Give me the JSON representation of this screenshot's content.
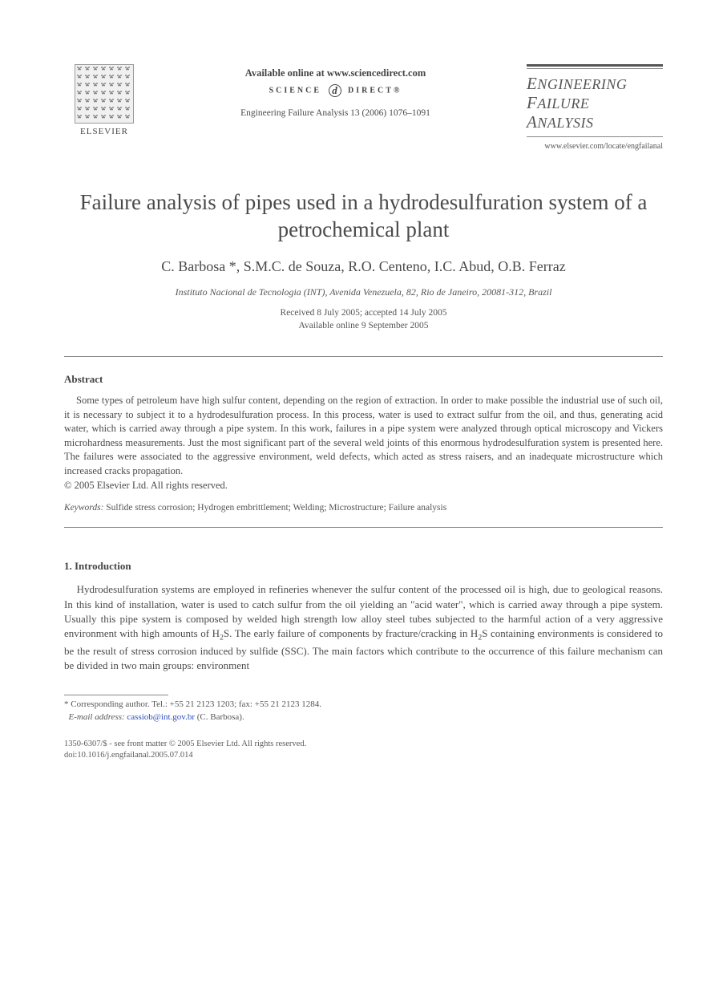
{
  "colors": {
    "text": "#4a4a4a",
    "muted": "#555555",
    "rule": "#888888",
    "link": "#2a4fbf",
    "background": "#ffffff"
  },
  "typography": {
    "base_family": "Georgia, 'Times New Roman', serif",
    "title_pt": 27,
    "authors_pt": 18,
    "body_pt": 13,
    "abstract_pt": 12.5,
    "small_pt": 11
  },
  "header": {
    "publisher": "ELSEVIER",
    "available_line": "Available online at www.sciencedirect.com",
    "sciencedirect_left": "SCIENCE",
    "sciencedirect_right": "DIRECT®",
    "sd_symbol": "d",
    "citation": "Engineering Failure Analysis 13 (2006) 1076–1091",
    "journal_line1_cap": "E",
    "journal_line1_rest": "NGINEERING",
    "journal_line2_cap": "F",
    "journal_line2_rest": "AILURE",
    "journal_line3_cap": "A",
    "journal_line3_rest": "NALYSIS",
    "journal_url": "www.elsevier.com/locate/engfailanal"
  },
  "title": "Failure analysis of pipes used in a hydrodesulfuration system of a petrochemical plant",
  "authors": "C. Barbosa *, S.M.C. de Souza, R.O. Centeno, I.C. Abud, O.B. Ferraz",
  "affiliation": "Instituto Nacional de Tecnologia (INT), Avenida Venezuela, 82, Rio de Janeiro, 20081-312, Brazil",
  "dates_line1": "Received 8 July 2005; accepted 14 July 2005",
  "dates_line2": "Available online 9 September 2005",
  "abstract_heading": "Abstract",
  "abstract_body": "Some types of petroleum have high sulfur content, depending on the region of extraction. In order to make possible the industrial use of such oil, it is necessary to subject it to a hydrodesulfuration process. In this process, water is used to extract sulfur from the oil, and thus, generating acid water, which is carried away through a pipe system. In this work, failures in a pipe system were analyzed through optical microscopy and Vickers microhardness measurements. Just the most significant part of the several weld joints of this enormous hydrodesulfuration system is presented here. The failures were associated to the aggressive environment, weld defects, which acted as stress raisers, and an inadequate microstructure which increased cracks propagation.",
  "copyright_line": "© 2005 Elsevier Ltd. All rights reserved.",
  "keywords_label": "Keywords:",
  "keywords_text": " Sulfide stress corrosion; Hydrogen embrittlement; Welding; Microstructure; Failure analysis",
  "section1_heading": "1. Introduction",
  "intro_pre": "Hydrodesulfuration systems are employed in refineries whenever the sulfur content of the processed oil is high, due to geological reasons. In this kind of installation, water is used to catch sulfur from the oil yielding an \"acid water\", which is carried away through a pipe system. Usually this pipe system is composed by welded high strength low alloy steel tubes subjected to the harmful action of a very aggressive environment with high amounts of H",
  "intro_mid": "S. The early failure of components by fracture/cracking in H",
  "intro_post": "S containing environments is considered to be the result of stress corrosion induced by sulfide (SSC). The main factors which contribute to the occurrence of this failure mechanism can be divided in two main groups: environment",
  "intro_sub": "2",
  "footnote": {
    "star": "*",
    "corr": " Corresponding author. Tel.: +55 21 2123 1203; fax: +55 21 2123 1284.",
    "email_label": "E-mail address:",
    "email": "cassiob@int.gov.br",
    "email_tail": " (C. Barbosa)."
  },
  "frontmatter_line1": "1350-6307/$ - see front matter © 2005 Elsevier Ltd. All rights reserved.",
  "frontmatter_line2": "doi:10.1016/j.engfailanal.2005.07.014"
}
